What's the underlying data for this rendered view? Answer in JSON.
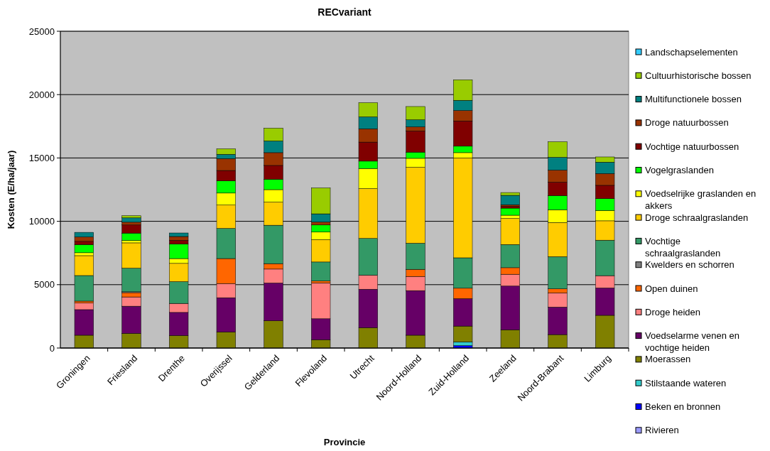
{
  "chart_data": {
    "type": "bar",
    "title": "RECvariant",
    "xlabel": "Provincie",
    "ylabel": "Kosten (E/ha/jaar)",
    "stacked": true,
    "grid": "y",
    "legend": "right",
    "categories": [
      "Groningen",
      "Friesland",
      "Drenthe",
      "Overijssel",
      "Gelderland",
      "Flevoland",
      "Utrecht",
      "Noord-Holland",
      "Zuid-Holland",
      "Zeeland",
      "Noord-Brabant",
      "Limburg"
    ],
    "ylim": [
      0,
      25000
    ],
    "yticks": [
      0,
      5000,
      10000,
      15000,
      20000,
      25000
    ],
    "series": [
      {
        "name": "Rivieren",
        "color": "#9999ff",
        "values": [
          0,
          0,
          0,
          0,
          0,
          0,
          0,
          0,
          0,
          0,
          0,
          0
        ]
      },
      {
        "name": "Beken en bronnen",
        "color": "#0000ff",
        "values": [
          0,
          0,
          0,
          0,
          0,
          0,
          0,
          0,
          190,
          0,
          0,
          0
        ]
      },
      {
        "name": "Stilstaande wateren",
        "color": "#33cccc",
        "values": [
          0,
          0,
          0,
          0,
          0,
          0,
          0,
          0,
          300,
          0,
          0,
          0
        ]
      },
      {
        "name": "Moerassen",
        "color": "#808000",
        "values": [
          1010,
          1160,
          990,
          1270,
          2150,
          660,
          1610,
          1010,
          1240,
          1440,
          1060,
          2580
        ]
      },
      {
        "name": "Voedselarme venen en vochtige heiden",
        "color": "#660066",
        "values": [
          2020,
          2140,
          1820,
          2700,
          2980,
          1650,
          3030,
          3520,
          2170,
          3450,
          2170,
          2160
        ]
      },
      {
        "name": "Droge heiden",
        "color": "#ff8080",
        "values": [
          520,
          730,
          710,
          1120,
          1100,
          2830,
          1110,
          1120,
          0,
          930,
          1120,
          970
        ]
      },
      {
        "name": "Open duinen",
        "color": "#ff6600",
        "values": [
          150,
          340,
          0,
          1970,
          430,
          150,
          0,
          560,
          820,
          520,
          320,
          0
        ]
      },
      {
        "name": "Kwelders en schorren",
        "color": "#808080",
        "values": [
          0,
          70,
          0,
          0,
          0,
          0,
          0,
          0,
          0,
          0,
          0,
          0
        ]
      },
      {
        "name": "Vochtige schraalgraslanden",
        "color": "#339966",
        "values": [
          2020,
          1860,
          1720,
          2380,
          3030,
          1500,
          2900,
          2060,
          2400,
          1830,
          2540,
          2800
        ]
      },
      {
        "name": "Droge schraalgraslanden",
        "color": "#ffcc00",
        "values": [
          1570,
          2000,
          1440,
          1840,
          1820,
          1760,
          3930,
          5990,
          7870,
          2050,
          2690,
          1530
        ]
      },
      {
        "name": "Voedselrijke graslanden en akkers",
        "color": "#ffff00",
        "values": [
          230,
          190,
          380,
          950,
          990,
          600,
          1590,
          710,
          430,
          260,
          1010,
          820
        ]
      },
      {
        "name": "Vogelgraslanden",
        "color": "#00ff00",
        "values": [
          640,
          580,
          1140,
          960,
          820,
          560,
          580,
          490,
          510,
          560,
          1120,
          930
        ]
      },
      {
        "name": "Vochtige natuurbossen",
        "color": "#800000",
        "values": [
          260,
          640,
          300,
          820,
          1090,
          0,
          1500,
          1670,
          1990,
          150,
          1060,
          1050
        ]
      },
      {
        "name": "Droge natuurbossen",
        "color": "#993300",
        "values": [
          340,
          220,
          300,
          940,
          1010,
          230,
          1050,
          320,
          820,
          120,
          950,
          930
        ]
      },
      {
        "name": "Multifunctionele bossen",
        "color": "#008080",
        "values": [
          370,
          340,
          280,
          340,
          920,
          650,
          940,
          560,
          810,
          740,
          1010,
          900
        ]
      },
      {
        "name": "Cultuurhistorische bossen",
        "color": "#99cc00",
        "values": [
          0,
          170,
          0,
          430,
          1010,
          2040,
          1120,
          1050,
          1620,
          220,
          1230,
          410
        ]
      },
      {
        "name": "Landschapselementen",
        "color": "#33ccff",
        "values": [
          0,
          0,
          0,
          0,
          0,
          0,
          0,
          0,
          0,
          0,
          0,
          0
        ]
      }
    ]
  }
}
